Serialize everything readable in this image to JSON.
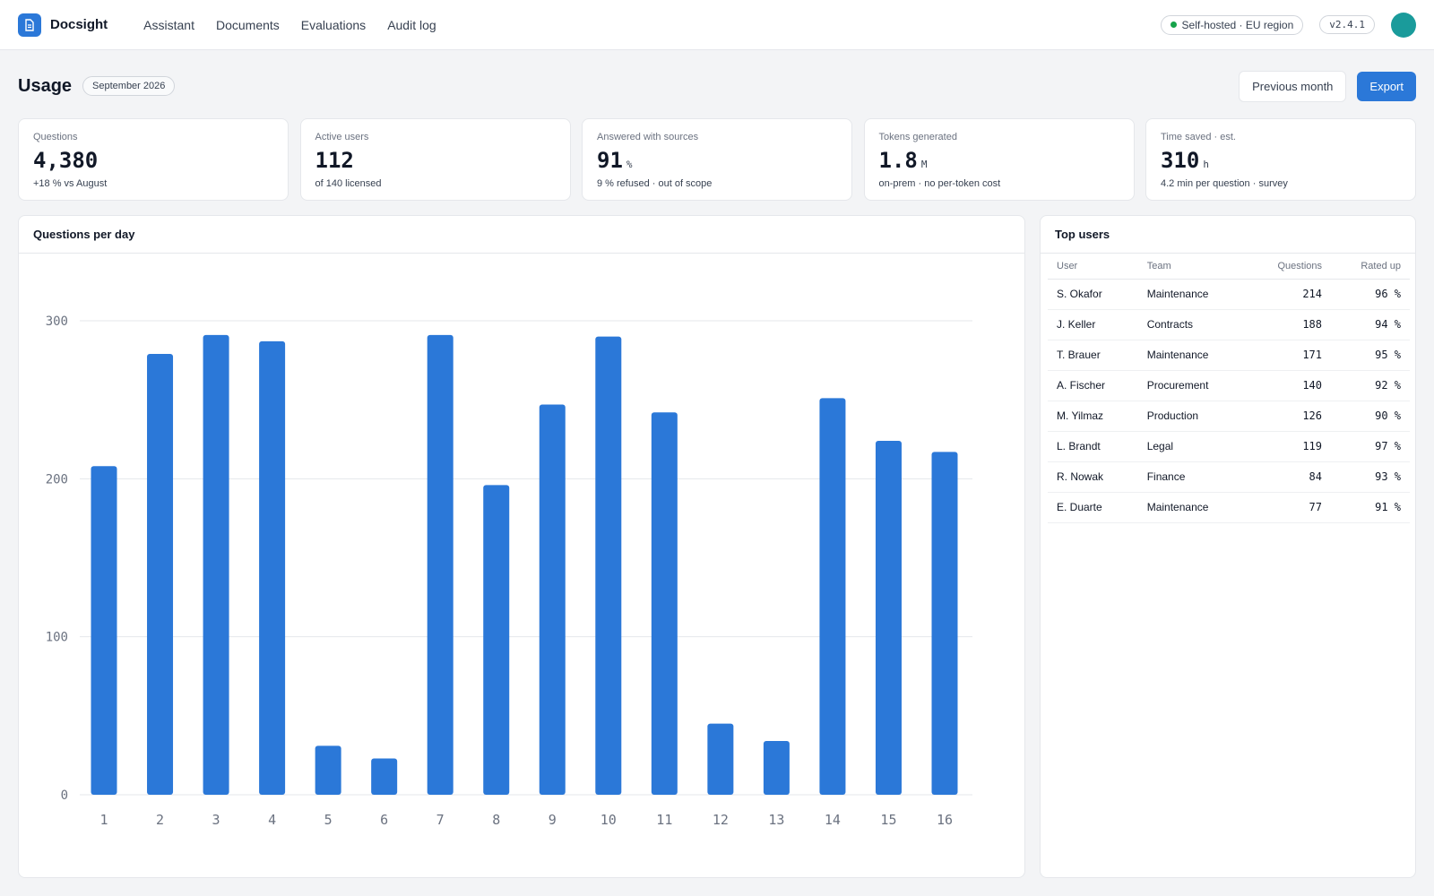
{
  "app": {
    "name": "Docsight"
  },
  "nav": [
    "Assistant",
    "Documents",
    "Evaluations",
    "Audit log"
  ],
  "status": {
    "hosting": "Self-hosted · EU region",
    "version": "v2.4.1"
  },
  "page": {
    "title": "Usage",
    "period": "September 2026",
    "prev_label": "Previous month",
    "export_label": "Export"
  },
  "stats": [
    {
      "label": "Questions",
      "value": "4,380",
      "unit": "",
      "sub": "+18 % vs August"
    },
    {
      "label": "Active users",
      "value": "112",
      "unit": "",
      "sub": "of 140 licensed"
    },
    {
      "label": "Answered with sources",
      "value": "91",
      "unit": "%",
      "sub": "9 % refused · out of scope"
    },
    {
      "label": "Tokens generated",
      "value": "1.8",
      "unit": "M",
      "sub": "on-prem · no per-token cost"
    },
    {
      "label": "Time saved · est.",
      "value": "310",
      "unit": "h",
      "sub": "4.2 min per question · survey"
    }
  ],
  "chart_panel": {
    "title": "Questions per day"
  },
  "chart_data": {
    "type": "bar",
    "title": "Questions per day",
    "categories": [
      "1",
      "2",
      "3",
      "4",
      "5",
      "6",
      "7",
      "8",
      "9",
      "10",
      "11",
      "12",
      "13",
      "14",
      "15",
      "16"
    ],
    "values": [
      208,
      279,
      291,
      287,
      31,
      23,
      291,
      196,
      247,
      290,
      242,
      45,
      34,
      251,
      224,
      217
    ],
    "yticks": [
      0,
      100,
      200,
      300
    ],
    "ylim": [
      0,
      300
    ],
    "grid": true,
    "color": "#2b78d8"
  },
  "users_panel": {
    "title": "Top users",
    "columns": [
      "User",
      "Team",
      "Questions",
      "Rated up"
    ],
    "rows": [
      {
        "user": "S. Okafor",
        "team": "Maintenance",
        "questions": "214",
        "rated": "96 %"
      },
      {
        "user": "J. Keller",
        "team": "Contracts",
        "questions": "188",
        "rated": "94 %"
      },
      {
        "user": "T. Brauer",
        "team": "Maintenance",
        "questions": "171",
        "rated": "95 %"
      },
      {
        "user": "A. Fischer",
        "team": "Procurement",
        "questions": "140",
        "rated": "92 %"
      },
      {
        "user": "M. Yilmaz",
        "team": "Production",
        "questions": "126",
        "rated": "90 %"
      },
      {
        "user": "L. Brandt",
        "team": "Legal",
        "questions": "119",
        "rated": "97 %"
      },
      {
        "user": "R. Nowak",
        "team": "Finance",
        "questions": "84",
        "rated": "93 %"
      },
      {
        "user": "E. Duarte",
        "team": "Maintenance",
        "questions": "77",
        "rated": "91 %"
      }
    ]
  },
  "colors": {
    "accent": "#2b78d8",
    "status_ok": "#16a34a",
    "avatar": "#1a9b9b"
  },
  "icons": {
    "logo": "document-icon",
    "status": "status-dot-icon"
  }
}
